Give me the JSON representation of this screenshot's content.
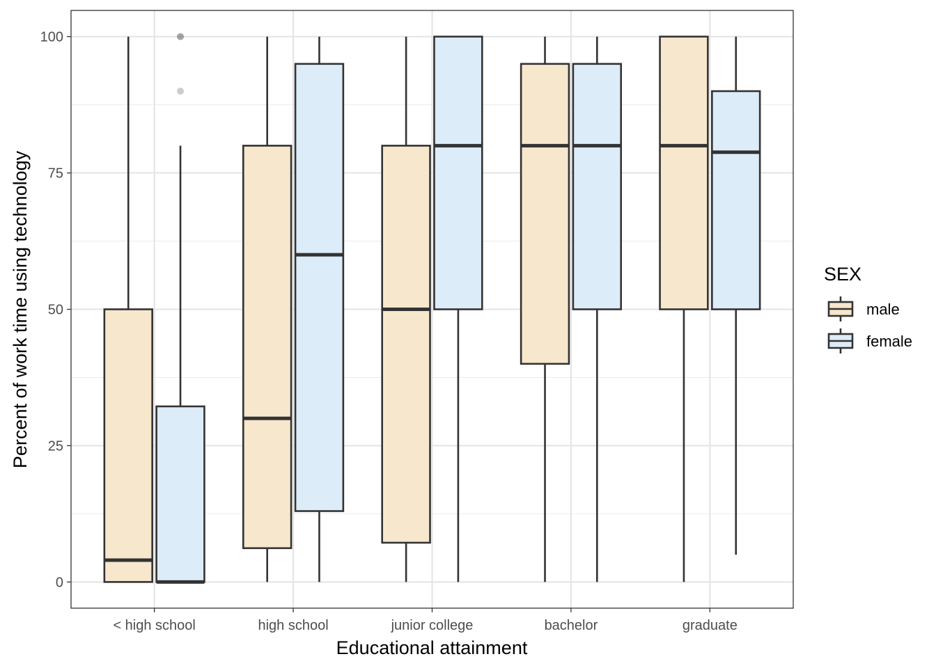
{
  "chart_data": {
    "type": "boxplot",
    "xlabel": "Educational attainment",
    "ylabel": "Percent of work time using technology",
    "ylim": [
      -4.8,
      104.8
    ],
    "yticks": [
      0,
      25,
      50,
      75,
      100
    ],
    "grid": true,
    "categories": [
      "< high school",
      "high school",
      "junior college",
      "bachelor",
      "graduate"
    ],
    "legend": {
      "title": "SEX",
      "position": "right",
      "entries": [
        {
          "name": "male",
          "color": "#f6e7cd"
        },
        {
          "name": "female",
          "color": "#dcecf8"
        }
      ]
    },
    "series": [
      {
        "name": "male",
        "color": "#f6e7cd",
        "boxes": [
          {
            "category": "< high school",
            "min": 0,
            "q1": 0,
            "median": 4,
            "q3": 50,
            "max": 100,
            "outliers": []
          },
          {
            "category": "high school",
            "min": 0,
            "q1": 6.2,
            "median": 30,
            "q3": 80,
            "max": 100,
            "outliers": []
          },
          {
            "category": "junior college",
            "min": 0,
            "q1": 7.2,
            "median": 50,
            "q3": 80,
            "max": 100,
            "outliers": []
          },
          {
            "category": "bachelor",
            "min": 0,
            "q1": 40,
            "median": 80,
            "q3": 95,
            "max": 100,
            "outliers": []
          },
          {
            "category": "graduate",
            "min": 0,
            "q1": 50,
            "median": 80,
            "q3": 100,
            "max": 100,
            "outliers": []
          }
        ]
      },
      {
        "name": "female",
        "color": "#dcecf8",
        "boxes": [
          {
            "category": "< high school",
            "min": 0,
            "q1": 0,
            "median": 0,
            "q3": 32.2,
            "max": 80,
            "outliers": [
              90,
              100,
              100
            ]
          },
          {
            "category": "high school",
            "min": 0,
            "q1": 13,
            "median": 60,
            "q3": 95,
            "max": 100,
            "outliers": []
          },
          {
            "category": "junior college",
            "min": 0,
            "q1": 50,
            "median": 80,
            "q3": 100,
            "max": 100,
            "outliers": []
          },
          {
            "category": "bachelor",
            "min": 0,
            "q1": 50,
            "median": 80,
            "q3": 95,
            "max": 100,
            "outliers": []
          },
          {
            "category": "graduate",
            "min": 5,
            "q1": 50,
            "median": 78.8,
            "q3": 90,
            "max": 100,
            "outliers": []
          }
        ]
      }
    ]
  }
}
